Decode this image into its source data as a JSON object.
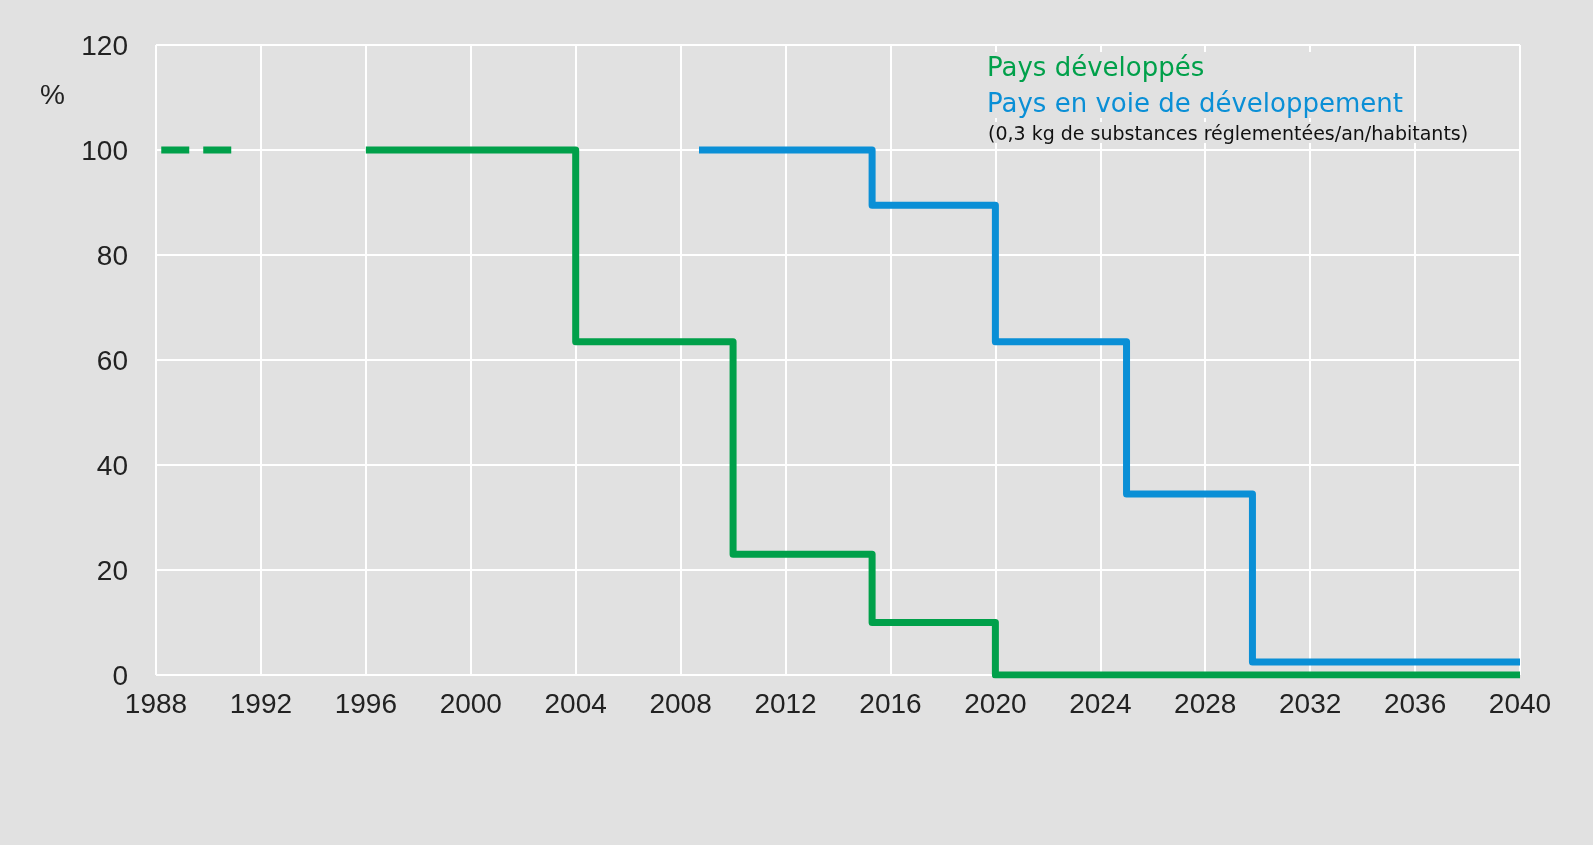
{
  "chart_data": {
    "type": "step",
    "ylabel": "%",
    "annotations": [
      "(0,3 kg de substances réglementées/an/habitants)"
    ],
    "xlim": [
      1988,
      2040
    ],
    "xticks": [
      1988,
      1992,
      1996,
      2000,
      2004,
      2008,
      2012,
      2016,
      2020,
      2024,
      2028,
      2032,
      2036,
      2040
    ],
    "ylim": [
      0,
      120
    ],
    "yticks": [
      0,
      20,
      40,
      60,
      80,
      100,
      120
    ],
    "grid": true,
    "legend": "top right",
    "marker": "none",
    "series": [
      {
        "color": "#00a04a",
        "line_style": "dashed",
        "x": [
          1988.2,
          1991
        ],
        "values": [
          100,
          100
        ]
      },
      {
        "name": "Pays développés",
        "color": "#00a04a",
        "line_style": "solid",
        "x": [
          1996,
          2004,
          2010,
          2015.3,
          2020,
          2040
        ],
        "values": [
          100,
          63.5,
          23,
          10,
          0,
          0
        ]
      },
      {
        "name": "Pays en voie de développement",
        "color": "#0a8fd6",
        "line_style": "solid",
        "x": [
          2008.7,
          2015.3,
          2020,
          2025,
          2029.8,
          2040
        ],
        "values": [
          100,
          89.5,
          63.5,
          34.5,
          2.5,
          2.5
        ]
      }
    ]
  }
}
